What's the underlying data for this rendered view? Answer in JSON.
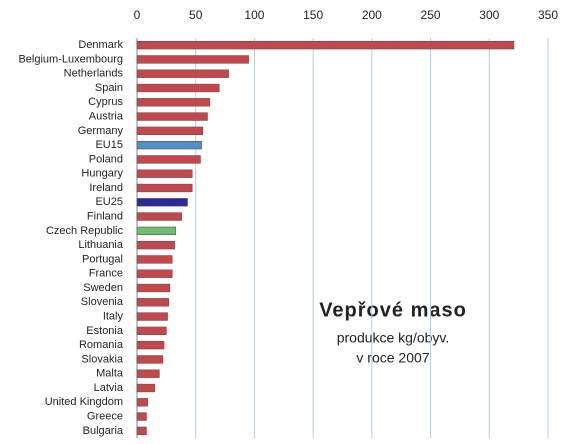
{
  "chart_data": {
    "type": "bar",
    "orientation": "horizontal",
    "categories": [
      "Denmark",
      "Belgium-Luxembourg",
      "Netherlands",
      "Spain",
      "Cyprus",
      "Austria",
      "Germany",
      "EU15",
      "Poland",
      "Hungary",
      "Ireland",
      "EU25",
      "Finland",
      "Czech Republic",
      "Lithuania",
      "Portugal",
      "France",
      "Sweden",
      "Slovenia",
      "Italy",
      "Estonia",
      "Romania",
      "Slovakia",
      "Malta",
      "Latvia",
      "United Kingdom",
      "Greece",
      "Bulgaria"
    ],
    "values": [
      321,
      95,
      78,
      70,
      62,
      60,
      56,
      55,
      54,
      47,
      47,
      43,
      38,
      33,
      32,
      30,
      30,
      28,
      27,
      26,
      25,
      23,
      22,
      19,
      15,
      9,
      8,
      8
    ],
    "colors": [
      "#c8464a",
      "#c8464a",
      "#c8464a",
      "#c8464a",
      "#c8464a",
      "#c8464a",
      "#c8464a",
      "#4f8fd0",
      "#c8464a",
      "#c8464a",
      "#c8464a",
      "#2a2a9a",
      "#c8464a",
      "#6cc06c",
      "#c8464a",
      "#c8464a",
      "#c8464a",
      "#c8464a",
      "#c8464a",
      "#c8464a",
      "#c8464a",
      "#c8464a",
      "#c8464a",
      "#c8464a",
      "#c8464a",
      "#c8464a",
      "#c8464a",
      "#c8464a"
    ],
    "xlim": [
      0,
      350
    ],
    "xticks": [
      0,
      50,
      100,
      150,
      200,
      250,
      300,
      350
    ],
    "grid": true,
    "annotations": [
      "Vepřové maso",
      "produkce kg/obyv.",
      "v roce 2007"
    ]
  }
}
